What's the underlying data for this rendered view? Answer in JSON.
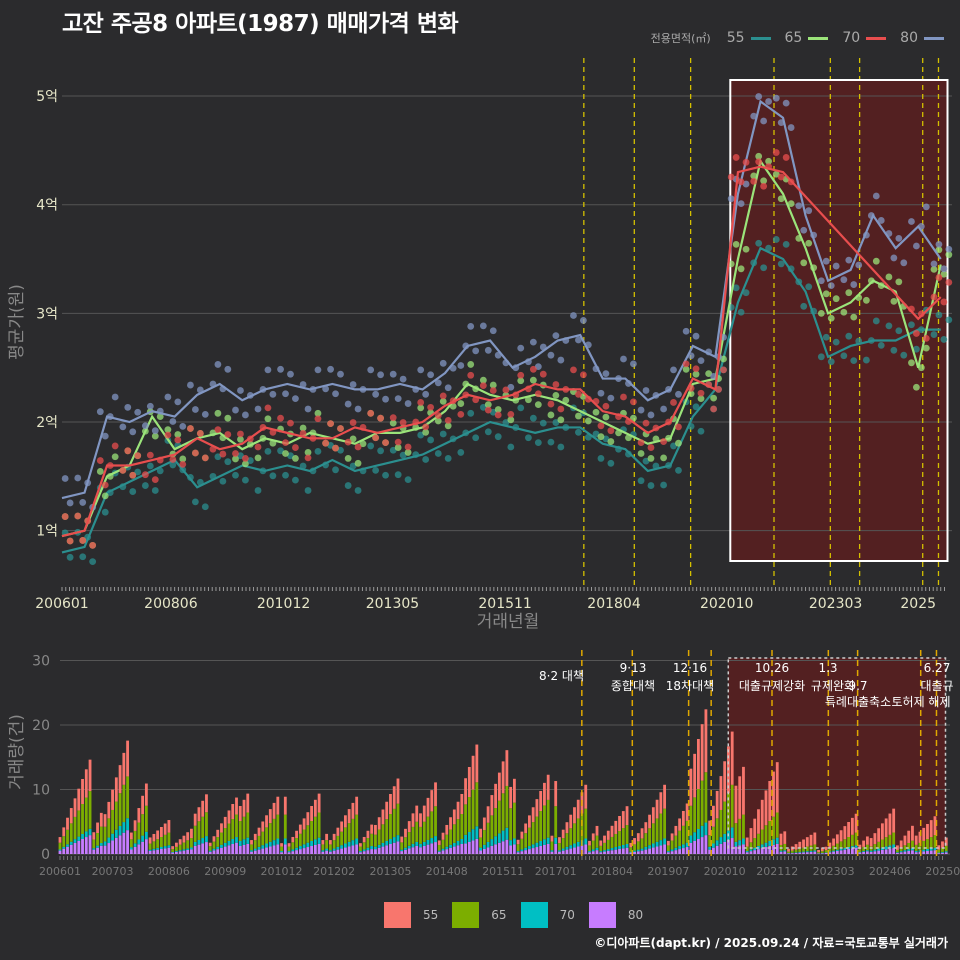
{
  "title": "고잔 주공8 아파트(1987) 매매가격 변화",
  "legend": {
    "title": "전용면적(㎡)",
    "items": [
      {
        "label": "55",
        "line_color": "#2b8f8f",
        "bar_color": "#f8766d"
      },
      {
        "label": "65",
        "line_color": "#9be47a",
        "bar_color": "#7cae00"
      },
      {
        "label": "70",
        "line_color": "#e84e4e",
        "bar_color": "#00bfc4"
      },
      {
        "label": "80",
        "line_color": "#8196c2",
        "bar_color": "#c77cff"
      }
    ]
  },
  "footer": "©디아파트(dapt.kr) / 2025.09.24 / 자료=국토교통부 실거래가",
  "colors": {
    "background": "#2b2b2d",
    "grid": "#555555",
    "highlight": "#5a1e20",
    "policy_line": "#d4c000"
  },
  "chart_data": [
    {
      "type": "line",
      "title": "고잔 주공8 아파트(1987) 매매가격 변화",
      "xlabel": "거래년월",
      "ylabel": "평균가(원)",
      "x_ticks": [
        "200601",
        "200806",
        "201012",
        "201305",
        "201511",
        "201804",
        "202010",
        "202303",
        "2025"
      ],
      "y_ticks": [
        {
          "value": 1,
          "label": "1억"
        },
        {
          "value": 2,
          "label": "2억"
        },
        {
          "value": 3,
          "label": "3억"
        },
        {
          "value": 4,
          "label": "4억"
        },
        {
          "value": 5,
          "label": "5억"
        }
      ],
      "ylim": [
        0.5,
        5.35
      ],
      "xlim": [
        2006.0,
        2025.75
      ],
      "highlight_range": [
        2020.83,
        2025.65
      ],
      "policy_lines": [
        2017.58,
        2018.7,
        2019.95,
        2021.8,
        2023.05,
        2023.7,
        2025.1,
        2025.45
      ],
      "series": [
        {
          "name": "55",
          "x": [
            2006.0,
            2006.5,
            2007.0,
            2007.5,
            2008.0,
            2008.5,
            2009.0,
            2009.5,
            2010.0,
            2010.5,
            2011.0,
            2011.5,
            2012.0,
            2012.5,
            2013.0,
            2013.5,
            2014.0,
            2014.5,
            2015.0,
            2015.5,
            2016.0,
            2016.5,
            2017.0,
            2017.5,
            2018.0,
            2018.5,
            2019.0,
            2019.5,
            2020.0,
            2020.5,
            2021.0,
            2021.5,
            2022.0,
            2022.5,
            2023.0,
            2023.5,
            2024.0,
            2024.5,
            2025.0,
            2025.5
          ],
          "y": [
            0.8,
            0.85,
            1.35,
            1.45,
            1.55,
            1.65,
            1.4,
            1.5,
            1.6,
            1.55,
            1.6,
            1.55,
            1.65,
            1.55,
            1.6,
            1.65,
            1.7,
            1.8,
            1.9,
            2.0,
            1.95,
            1.9,
            1.95,
            1.95,
            1.8,
            1.75,
            1.55,
            1.6,
            2.05,
            2.3,
            3.1,
            3.6,
            3.5,
            3.2,
            2.6,
            2.7,
            2.75,
            2.75,
            2.85,
            2.85
          ]
        },
        {
          "name": "65",
          "x": [
            2006.0,
            2006.5,
            2007.0,
            2007.5,
            2008.0,
            2008.5,
            2009.0,
            2009.5,
            2010.0,
            2010.5,
            2011.0,
            2011.5,
            2012.0,
            2012.5,
            2013.0,
            2013.5,
            2014.0,
            2014.5,
            2015.0,
            2015.5,
            2016.0,
            2016.5,
            2017.0,
            2017.5,
            2018.0,
            2018.5,
            2019.0,
            2019.5,
            2020.0,
            2020.5,
            2021.0,
            2021.5,
            2022.0,
            2022.5,
            2023.0,
            2023.5,
            2024.0,
            2024.5,
            2025.0,
            2025.5
          ],
          "y": [
            0.95,
            1.0,
            1.5,
            1.6,
            2.05,
            1.75,
            1.85,
            1.9,
            1.75,
            1.85,
            1.8,
            1.9,
            1.85,
            1.8,
            1.9,
            1.9,
            1.95,
            2.1,
            2.35,
            2.25,
            2.2,
            2.25,
            2.2,
            2.1,
            2.0,
            1.9,
            1.8,
            1.85,
            2.35,
            2.4,
            3.5,
            4.4,
            4.1,
            3.6,
            3.0,
            3.1,
            3.3,
            3.2,
            2.5,
            3.45
          ]
        },
        {
          "name": "70",
          "x": [
            2006.0,
            2006.5,
            2007.0,
            2007.5,
            2008.0,
            2008.5,
            2009.0,
            2009.5,
            2010.0,
            2010.5,
            2011.0,
            2011.5,
            2012.0,
            2012.5,
            2013.0,
            2013.5,
            2014.0,
            2014.5,
            2015.0,
            2015.5,
            2016.0,
            2016.5,
            2017.0,
            2017.5,
            2018.0,
            2018.5,
            2019.0,
            2019.5,
            2020.0,
            2020.5,
            2021.0,
            2021.5,
            2022.0,
            2025.0,
            2025.5
          ],
          "y": [
            0.95,
            1.0,
            1.6,
            1.6,
            1.65,
            1.7,
            1.85,
            1.75,
            1.8,
            1.95,
            1.9,
            1.85,
            1.85,
            1.95,
            1.9,
            1.95,
            2.0,
            2.15,
            2.25,
            2.2,
            2.25,
            2.35,
            2.3,
            2.3,
            2.1,
            2.05,
            1.9,
            2.0,
            2.4,
            2.3,
            4.3,
            4.35,
            4.3,
            2.95,
            3.15
          ]
        },
        {
          "name": "80",
          "x": [
            2006.0,
            2006.5,
            2007.0,
            2007.5,
            2008.0,
            2008.5,
            2009.0,
            2009.5,
            2010.0,
            2010.5,
            2011.0,
            2011.5,
            2012.0,
            2012.5,
            2013.0,
            2013.5,
            2014.0,
            2014.5,
            2015.0,
            2015.5,
            2016.0,
            2016.5,
            2017.0,
            2017.5,
            2018.0,
            2018.5,
            2019.0,
            2019.5,
            2020.0,
            2020.5,
            2021.0,
            2021.5,
            2022.0,
            2022.5,
            2023.0,
            2023.5,
            2024.0,
            2024.5,
            2025.0,
            2025.5
          ],
          "y": [
            1.3,
            1.35,
            2.05,
            2.0,
            2.1,
            2.05,
            2.25,
            2.35,
            2.2,
            2.3,
            2.35,
            2.3,
            2.35,
            2.3,
            2.3,
            2.35,
            2.3,
            2.45,
            2.7,
            2.75,
            2.5,
            2.6,
            2.75,
            2.8,
            2.4,
            2.4,
            2.2,
            2.3,
            2.7,
            2.6,
            4.1,
            4.95,
            4.8,
            3.9,
            3.3,
            3.4,
            3.9,
            3.6,
            3.8,
            3.5
          ]
        }
      ]
    },
    {
      "type": "bar",
      "stacked": true,
      "xlabel": "",
      "ylabel": "거래량(건)",
      "x_ticks": [
        "200601",
        "200703",
        "200806",
        "200909",
        "201012",
        "201202",
        "201305",
        "201408",
        "201511",
        "201701",
        "201804",
        "201907",
        "202010",
        "202112",
        "202303",
        "202406",
        "202509"
      ],
      "y_ticks": [
        0,
        10,
        20,
        30
      ],
      "ylim": [
        0,
        31
      ],
      "highlight_range": [
        2020.83,
        2025.65
      ],
      "policy_lines": [
        2017.58,
        2018.7,
        2019.95,
        2020.45,
        2021.8,
        2023.05,
        2023.7,
        2025.1,
        2025.45
      ],
      "annotations": [
        {
          "date": 2017.58,
          "lines": [
            "8·2 대책"
          ]
        },
        {
          "date": 2018.7,
          "lines": [
            "9·13",
            "종합대책"
          ]
        },
        {
          "date": 2019.95,
          "lines": [
            "12·16",
            "18차대책"
          ]
        },
        {
          "date": 2021.8,
          "lines": [
            "10.26",
            "대출규제강화"
          ]
        },
        {
          "date": 2023.05,
          "lines": [
            "1.3",
            "규제완화"
          ]
        },
        {
          "date": 2023.7,
          "lines": [
            "9.7",
            "특례대출축소"
          ]
        },
        {
          "date": 2025.1,
          "lines": [
            "토허제 해제"
          ]
        },
        {
          "date": 2025.45,
          "lines": [
            "6.27",
            "대출규"
          ]
        }
      ],
      "categories": [
        "2006",
        "2007",
        "2008",
        "2009",
        "2010",
        "2011",
        "2012",
        "2013",
        "2014",
        "2015",
        "2016",
        "2017",
        "2018",
        "2019",
        "2020",
        "2021",
        "2022",
        "2023",
        "2024",
        "2025"
      ],
      "series": [
        {
          "name": "55",
          "values": [
            2.5,
            3.0,
            1.0,
            1.5,
            1.5,
            1.5,
            1.5,
            2.0,
            2.0,
            3.0,
            2.0,
            2.0,
            1.5,
            2.0,
            5.0,
            4.0,
            1.0,
            1.5,
            2.0,
            1.5
          ]
        },
        {
          "name": "65",
          "values": [
            3.0,
            3.5,
            1.0,
            2.0,
            2.0,
            2.0,
            2.0,
            2.5,
            2.5,
            3.5,
            3.0,
            2.5,
            1.5,
            2.5,
            4.0,
            2.0,
            0.5,
            1.0,
            1.0,
            1.0
          ]
        },
        {
          "name": "70",
          "values": [
            0.5,
            1.0,
            0.2,
            0.5,
            0.5,
            0.5,
            0.5,
            0.5,
            0.5,
            1.0,
            0.5,
            0.5,
            0.3,
            0.5,
            1.0,
            0.5,
            0.1,
            0.2,
            0.3,
            0.2
          ]
        },
        {
          "name": "80",
          "values": [
            1.5,
            2.0,
            0.5,
            1.0,
            0.8,
            0.8,
            0.8,
            1.0,
            1.0,
            1.2,
            0.8,
            0.8,
            0.5,
            0.8,
            1.5,
            0.8,
            0.2,
            0.5,
            0.5,
            0.3
          ]
        }
      ]
    }
  ]
}
